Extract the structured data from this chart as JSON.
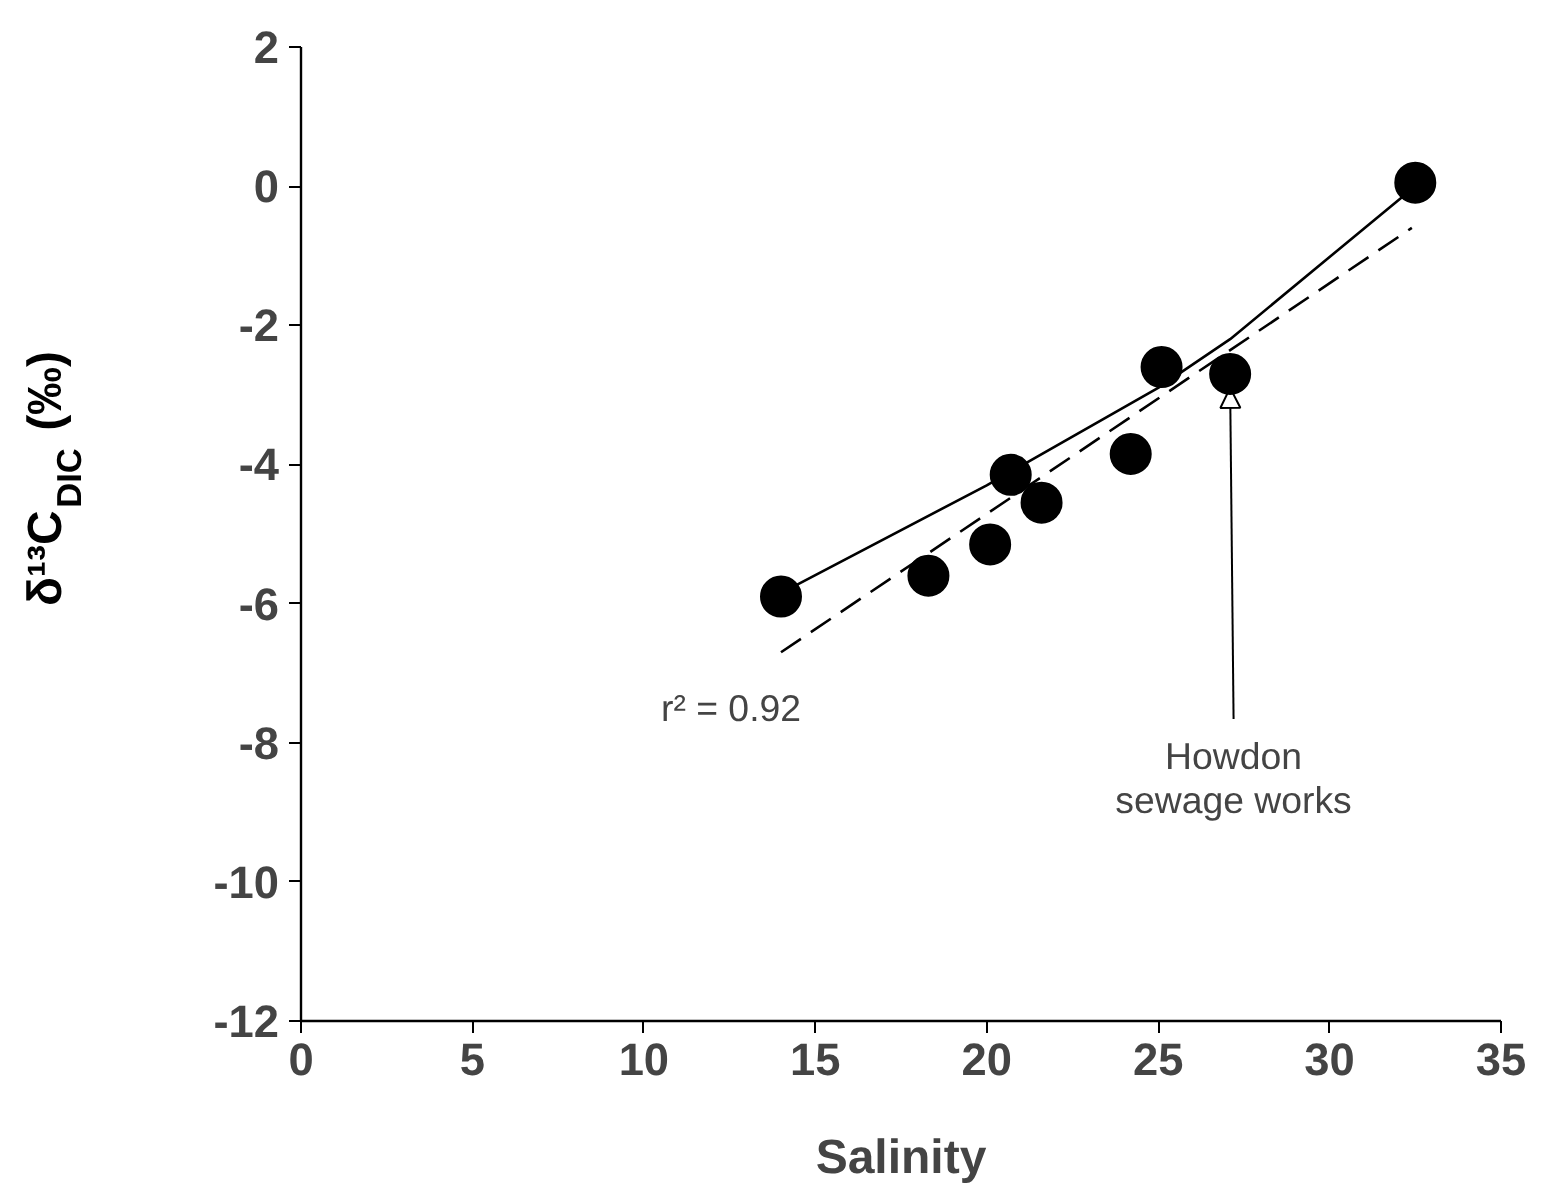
{
  "chart_data": {
    "type": "scatter",
    "xlabel": "Salinity",
    "ylabel": "δ¹³C$_{DIC}$ (‰)",
    "xlim": [
      0,
      35
    ],
    "ylim": [
      -12,
      2
    ],
    "xticks": [
      0,
      5,
      10,
      15,
      20,
      25,
      30,
      35
    ],
    "yticks": [
      2,
      0,
      -2,
      -4,
      -6,
      -8,
      -10,
      -12
    ],
    "grid": false,
    "marker": "circle",
    "series": [
      {
        "color": "#000000",
        "x": [
          14,
          18.3,
          20.1,
          20.7,
          21.6,
          24.2,
          25.1,
          27.1,
          32.5
        ],
        "values": [
          -5.9,
          -5.6,
          -5.15,
          -4.15,
          -4.55,
          -3.85,
          -2.6,
          -2.7,
          0.05
        ]
      },
      {
        "type": "line",
        "marker": "none",
        "color": "#000000",
        "line_style": "solid",
        "x": [
          14,
          20,
          25,
          27.1,
          32.5
        ],
        "values": [
          -5.85,
          -4.3,
          -2.9,
          -2.2,
          0
        ]
      },
      {
        "type": "line",
        "marker": "none",
        "color": "#000000",
        "line_style": "dashed",
        "x": [
          14,
          32.4
        ],
        "values": [
          -6.7,
          -0.6
        ]
      }
    ],
    "annotations": [
      "r² = 0.92",
      {
        "text": "Howdon\nsewage works",
        "x": 27.1,
        "y": -2.9
      }
    ]
  }
}
